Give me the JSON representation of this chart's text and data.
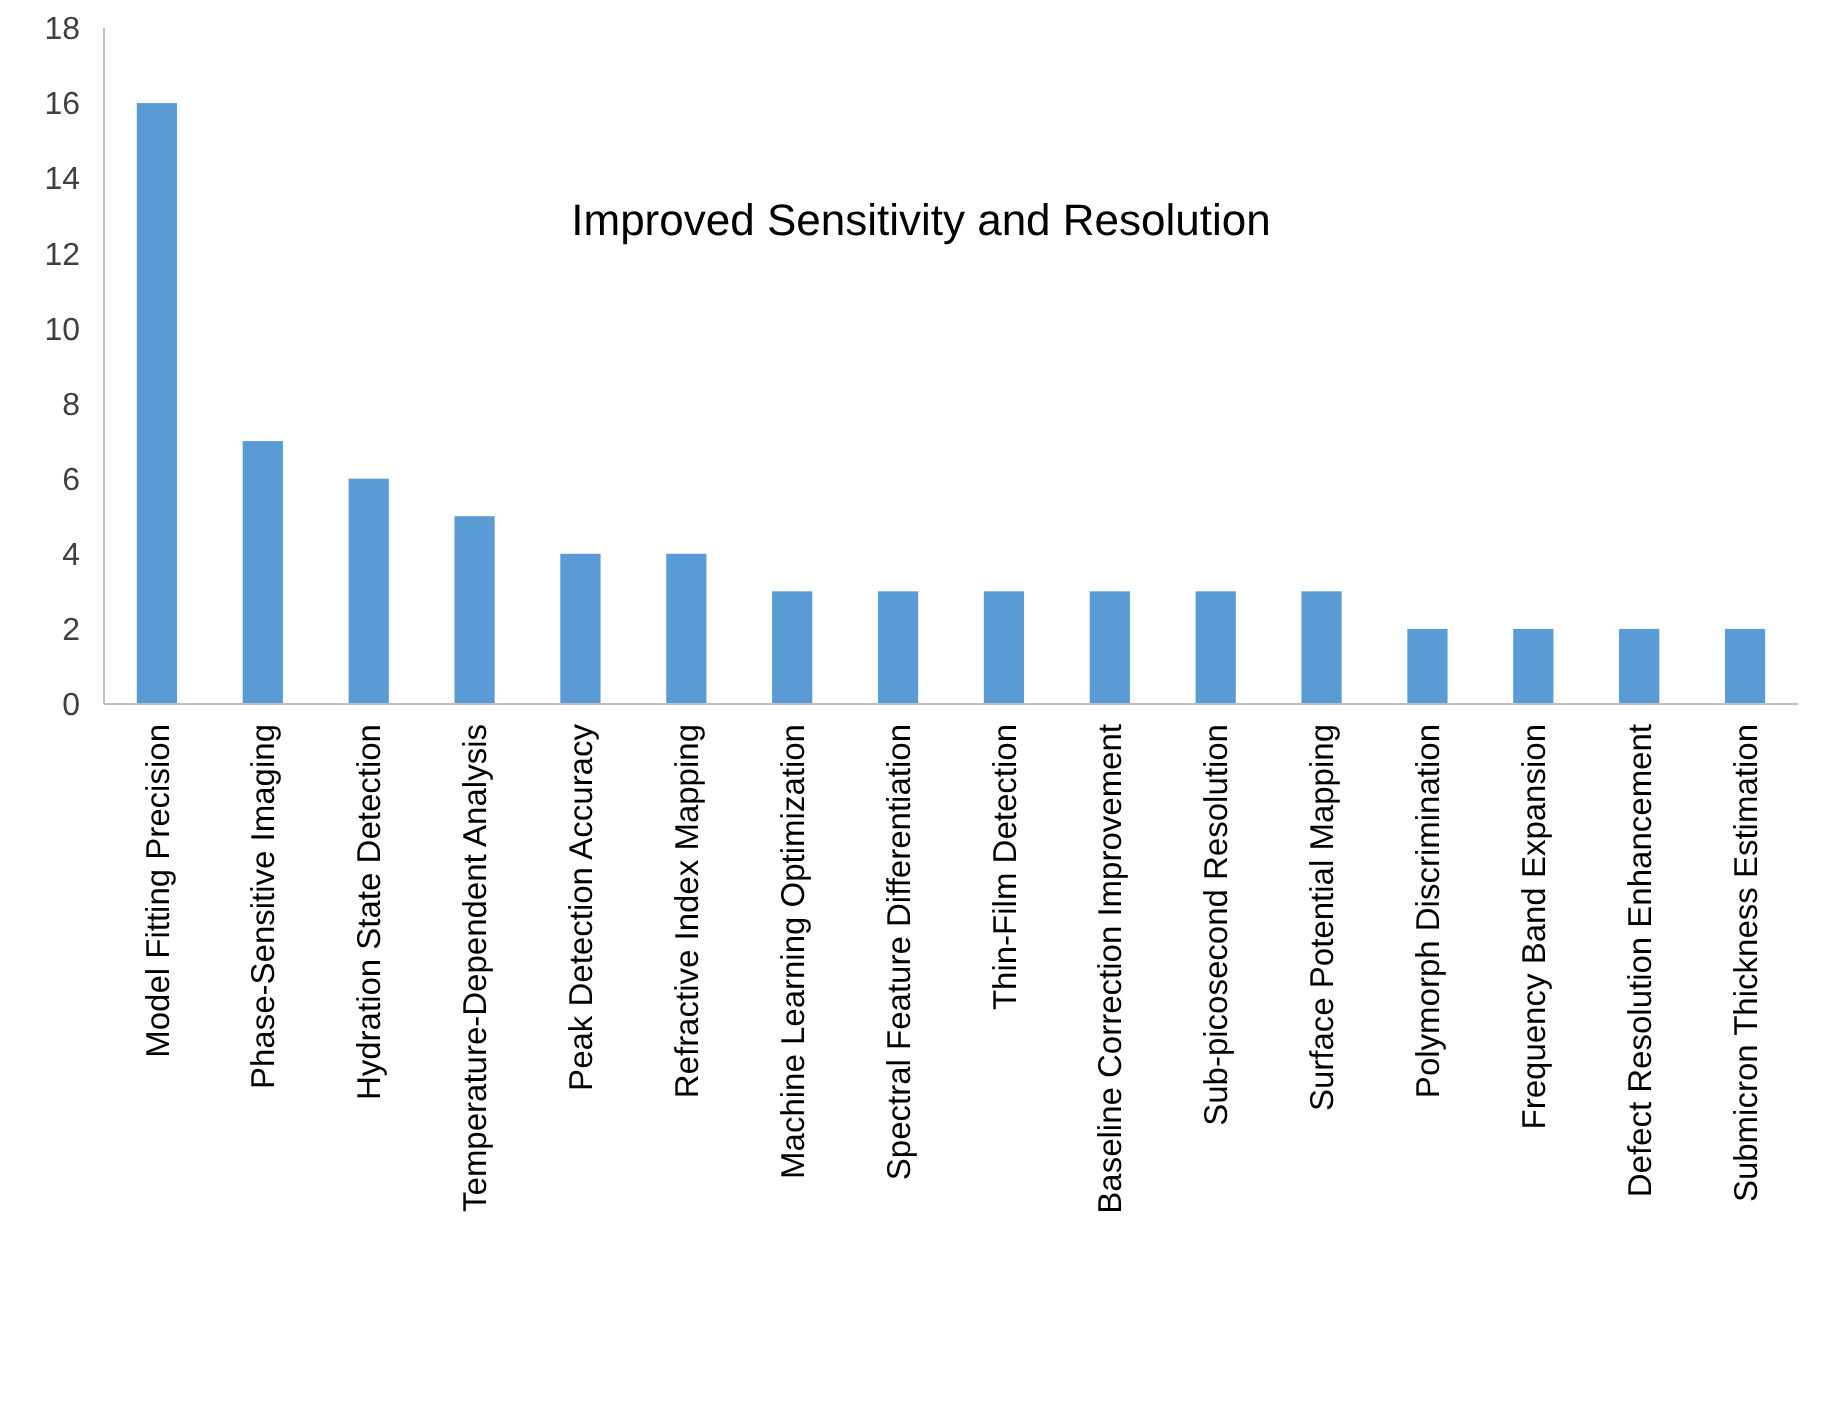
{
  "chart_data": {
    "type": "bar",
    "title": "Improved Sensitivity and Resolution",
    "categories": [
      "Model Fitting Precision",
      "Phase-Sensitive Imaging",
      "Hydration State Detection",
      "Temperature-Dependent Analysis",
      "Peak Detection Accuracy",
      "Refractive Index Mapping",
      "Machine Learning Optimization",
      "Spectral Feature Differentiation",
      "Thin-Film Detection",
      "Baseline Correction Improvement",
      "Sub-picosecond Resolution",
      "Surface Potential Mapping",
      "Polymorph Discrimination",
      "Frequency Band Expansion",
      "Defect Resolution Enhancement",
      "Submicron Thickness Estimation"
    ],
    "values": [
      16,
      7,
      6,
      5,
      4,
      4,
      3,
      3,
      3,
      3,
      3,
      3,
      2,
      2,
      2,
      2
    ],
    "color": "#5b9bd5",
    "ylim": [
      0,
      18
    ],
    "yticks": [
      0,
      2,
      4,
      6,
      8,
      10,
      12,
      14,
      16,
      18
    ],
    "grid": false
  }
}
